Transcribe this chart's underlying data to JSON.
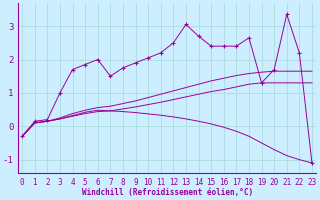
{
  "xlabel": "Windchill (Refroidissement éolien,°C)",
  "bg_color": "#cceeff",
  "line_color": "#990099",
  "grid_color": "#aadddd",
  "x_ticks": [
    0,
    1,
    2,
    3,
    4,
    5,
    6,
    7,
    8,
    9,
    10,
    11,
    12,
    13,
    14,
    15,
    16,
    17,
    18,
    19,
    20,
    21,
    22,
    23
  ],
  "ylim": [
    -1.4,
    3.7
  ],
  "yticks": [
    -1,
    0,
    1,
    2,
    3
  ],
  "xlim": [
    -0.3,
    23.3
  ],
  "line1_x": [
    0,
    1,
    2,
    3,
    4,
    5,
    6,
    7,
    8,
    9,
    10,
    11,
    12,
    13,
    14,
    15,
    16,
    17,
    18,
    19,
    20,
    21,
    22,
    23
  ],
  "line1_y": [
    -0.3,
    0.15,
    0.2,
    1.0,
    1.7,
    1.85,
    2.0,
    1.5,
    1.75,
    1.9,
    2.05,
    2.2,
    2.5,
    3.05,
    2.7,
    2.4,
    2.4,
    2.4,
    2.65,
    1.3,
    1.7,
    3.35,
    2.2,
    -1.1
  ],
  "line2_x": [
    0,
    1,
    2,
    3,
    4,
    5,
    6,
    7,
    8,
    9,
    10,
    11,
    12,
    13,
    14,
    15,
    16,
    17,
    18,
    19,
    20,
    21,
    22,
    23
  ],
  "line2_y": [
    -0.3,
    0.1,
    0.15,
    0.22,
    0.32,
    0.42,
    0.48,
    0.46,
    0.44,
    0.41,
    0.37,
    0.33,
    0.28,
    0.22,
    0.15,
    0.07,
    -0.03,
    -0.15,
    -0.3,
    -0.5,
    -0.7,
    -0.88,
    -1.0,
    -1.1
  ],
  "line3_x": [
    0,
    1,
    2,
    3,
    4,
    5,
    6,
    7,
    8,
    9,
    10,
    11,
    12,
    13,
    14,
    15,
    16,
    17,
    18,
    19,
    20,
    21,
    22,
    23
  ],
  "line3_y": [
    -0.3,
    0.1,
    0.15,
    0.25,
    0.38,
    0.48,
    0.56,
    0.6,
    0.68,
    0.76,
    0.86,
    0.96,
    1.06,
    1.16,
    1.26,
    1.36,
    1.44,
    1.52,
    1.58,
    1.62,
    1.65,
    1.65,
    1.65,
    1.65
  ],
  "line4_x": [
    0,
    1,
    2,
    3,
    4,
    5,
    6,
    7,
    8,
    9,
    10,
    11,
    12,
    13,
    14,
    15,
    16,
    17,
    18,
    19,
    20,
    21,
    22,
    23
  ],
  "line4_y": [
    -0.3,
    0.1,
    0.15,
    0.22,
    0.3,
    0.38,
    0.44,
    0.46,
    0.52,
    0.58,
    0.65,
    0.72,
    0.8,
    0.88,
    0.96,
    1.04,
    1.1,
    1.18,
    1.26,
    1.3,
    1.3,
    1.3,
    1.3,
    1.3
  ],
  "tick_fontsize": 5.5,
  "xlabel_fontsize": 5.5
}
